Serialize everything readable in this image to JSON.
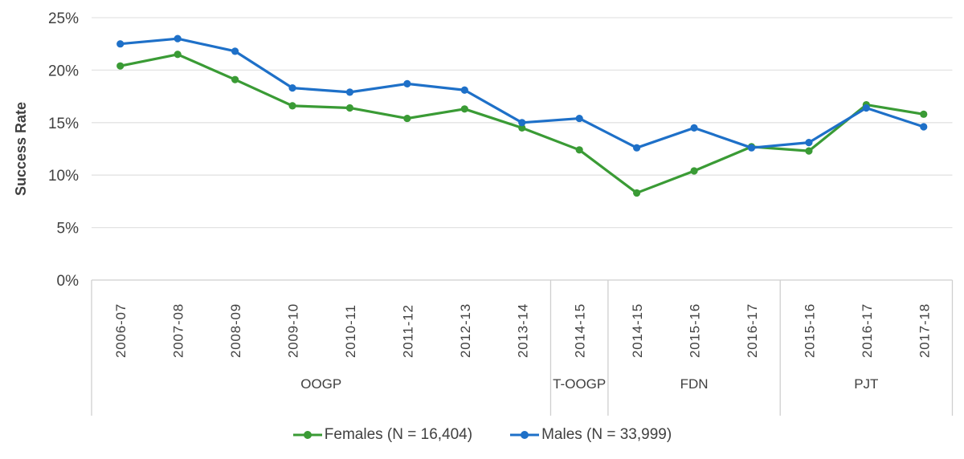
{
  "chart_data": {
    "type": "line",
    "title": "",
    "ylabel": "Success Rate",
    "xlabel": "",
    "ylim": [
      0,
      25
    ],
    "ytick_step": 5,
    "ytick_labels": [
      "0%",
      "5%",
      "10%",
      "15%",
      "20%",
      "25%"
    ],
    "grid": true,
    "legend_position": "bottom",
    "categories": [
      "2006-07",
      "2007-08",
      "2008-09",
      "2009-10",
      "2010-11",
      "2011-12",
      "2012-13",
      "2013-14",
      "2014-15",
      "2014-15",
      "2015-16",
      "2016-17",
      "2015-16",
      "2016-17",
      "2017-18"
    ],
    "groups": [
      {
        "label": "OOGP",
        "count": 8
      },
      {
        "label": "T-OOGP",
        "count": 1
      },
      {
        "label": "FDN",
        "count": 3
      },
      {
        "label": "PJT",
        "count": 3
      }
    ],
    "series": [
      {
        "name": "Females (N = 16,404)",
        "color": "#3A9B35",
        "values": [
          20.4,
          21.5,
          19.1,
          16.6,
          16.4,
          15.4,
          16.3,
          14.5,
          12.4,
          8.3,
          10.4,
          12.7,
          12.3,
          16.7,
          15.8
        ]
      },
      {
        "name": "Males (N = 33,999)",
        "color": "#1E70C8",
        "values": [
          22.5,
          23.0,
          21.8,
          18.3,
          17.9,
          18.7,
          18.1,
          15.0,
          15.4,
          12.6,
          14.5,
          12.6,
          13.1,
          16.4,
          14.6
        ]
      }
    ]
  },
  "colors": {
    "grid": "#E3E3E3",
    "axis": "#CFCFCF",
    "text": "#404040"
  }
}
